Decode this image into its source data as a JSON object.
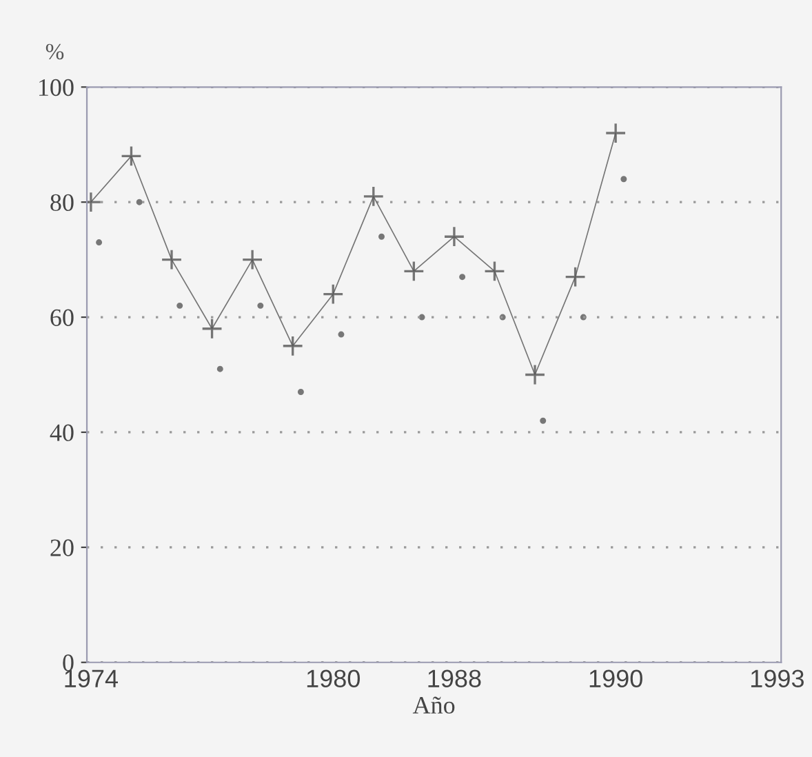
{
  "chart_data": {
    "type": "line",
    "xlabel": "Año",
    "ylabel": "%",
    "categories": [
      "1974",
      null,
      null,
      null,
      null,
      null,
      "1980",
      null,
      null,
      "1988",
      null,
      null,
      null,
      "1990",
      null,
      null,
      null,
      "1993"
    ],
    "ylim": [
      0,
      100
    ],
    "yticks": [
      0,
      20,
      40,
      60,
      80,
      100
    ],
    "grid": "y",
    "series": [
      {
        "color": "#555555",
        "marker": "cross",
        "values": [
          80,
          88,
          70,
          58,
          70,
          55,
          64,
          81,
          68,
          74,
          68,
          50,
          67,
          92,
          null,
          null,
          null,
          null
        ]
      },
      {
        "type": "scatter",
        "color": "#777777",
        "marker": "circle",
        "values": [
          73,
          80,
          62,
          51,
          62,
          47,
          57,
          74,
          60,
          67,
          60,
          42,
          60,
          84,
          null,
          null,
          null,
          null
        ]
      }
    ]
  }
}
